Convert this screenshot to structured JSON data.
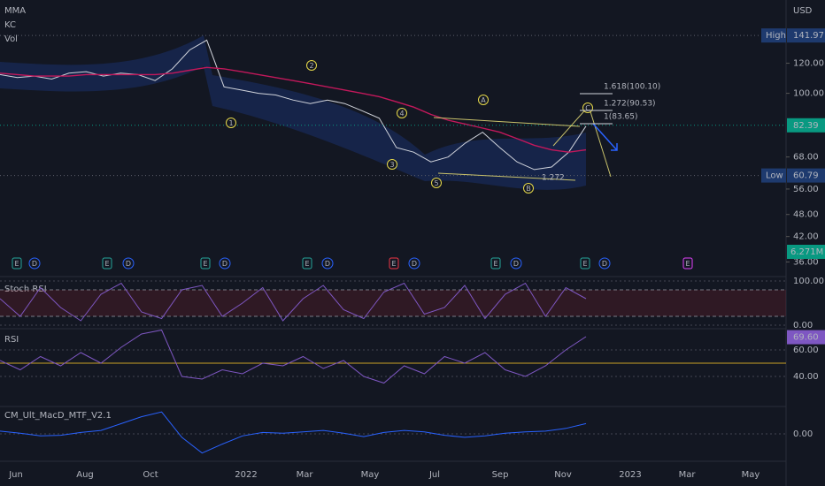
{
  "legend": [
    "MMA",
    "KC",
    "Vol"
  ],
  "currency": "USD",
  "chart_data": {
    "type": "line",
    "log_scale": true,
    "ylim": [
      32.6,
      176
    ],
    "yticks": [
      {
        "value": 120,
        "label": "120.00"
      },
      {
        "value": 100,
        "label": "100.00"
      },
      {
        "value": 68,
        "label": "68.00"
      },
      {
        "value": 56,
        "label": "56.00"
      },
      {
        "value": 48,
        "label": "48.00"
      },
      {
        "value": 42,
        "label": "42.00"
      },
      {
        "value": 36,
        "label": "36.00"
      }
    ],
    "xaxis_labels": [
      "Jun",
      "Aug",
      "Oct",
      "2022",
      "Mar",
      "May",
      "Jul",
      "Sep",
      "Nov",
      "2023",
      "Mar",
      "May"
    ],
    "series": [
      {
        "color": "#d1d4dc",
        "values": [
          112,
          110,
          111,
          109,
          113,
          114,
          111,
          113,
          112,
          108,
          116,
          130,
          138,
          104,
          102,
          100,
          99,
          96,
          94,
          96,
          94,
          90,
          86,
          72,
          70,
          66,
          68,
          74,
          79,
          72,
          66,
          63,
          64,
          70,
          82
        ]
      },
      {
        "name": "MMA",
        "color": "#c2185b",
        "values": [
          113,
          112,
          111,
          111,
          111,
          112,
          112,
          112,
          112,
          112,
          113,
          115,
          117,
          116,
          114,
          112,
          110,
          108,
          106,
          104,
          102,
          100,
          98,
          95,
          92,
          88,
          85,
          83,
          81,
          79,
          76,
          73,
          71,
          70,
          71
        ]
      }
    ],
    "badges": {
      "high": {
        "label": "High",
        "value": 141.97
      },
      "low": {
        "label": "Low",
        "value": 60.79
      },
      "last": 82.39,
      "volume": "6.271M"
    },
    "waves": [
      "1",
      "2",
      "3",
      "4",
      "5",
      "A",
      "B",
      "C"
    ],
    "fib": [
      "1.618(100.10)",
      "1.272(90.53)",
      "1(83.65)",
      "1.272"
    ],
    "events": [
      "E",
      "D",
      "E",
      "D",
      "E",
      "D",
      "E",
      "D",
      "E",
      "D",
      "E",
      "D",
      "E",
      "D",
      "E"
    ]
  },
  "stoch": {
    "title": "Stoch RSI",
    "ylim": [
      -10,
      110
    ],
    "yticks": [
      {
        "value": 100,
        "label": "100.00"
      },
      {
        "value": 0,
        "label": "0.00"
      }
    ],
    "bands": [
      80,
      20
    ],
    "color": "#7e57c2",
    "values": [
      60,
      20,
      85,
      40,
      10,
      70,
      95,
      30,
      15,
      80,
      90,
      20,
      50,
      85,
      10,
      60,
      90,
      35,
      15,
      75,
      95,
      25,
      40,
      90,
      15,
      70,
      95,
      20,
      85,
      60
    ]
  },
  "rsi": {
    "title": "RSI",
    "ylim": [
      17.3,
      76
    ],
    "yticks": [
      {
        "value": 60,
        "label": "60.00"
      },
      {
        "value": 40,
        "label": "40.00"
      }
    ],
    "midline": 50,
    "color": "#7e57c2",
    "last": {
      "value": 69.6,
      "label": "69.60"
    },
    "values": [
      52,
      45,
      55,
      48,
      58,
      50,
      62,
      72,
      75,
      40,
      38,
      45,
      42,
      50,
      48,
      55,
      46,
      52,
      40,
      35,
      48,
      42,
      55,
      50,
      58,
      45,
      40,
      48,
      60,
      70
    ]
  },
  "macd": {
    "title": "CM_Ult_MacD_MTF_V2.1",
    "ylim": [
      -4,
      4
    ],
    "yticks": [
      {
        "value": 0,
        "label": "0.00"
      }
    ],
    "color": "#2962ff",
    "values": [
      0.4,
      0.1,
      -0.3,
      -0.2,
      0.2,
      0.5,
      1.5,
      2.5,
      3.2,
      -0.5,
      -2.8,
      -1.5,
      -0.3,
      0.2,
      0.1,
      0.3,
      0.5,
      0.1,
      -0.4,
      0.2,
      0.5,
      0.3,
      -0.2,
      -0.5,
      -0.3,
      0.1,
      0.3,
      0.4,
      0.8,
      1.5
    ]
  }
}
